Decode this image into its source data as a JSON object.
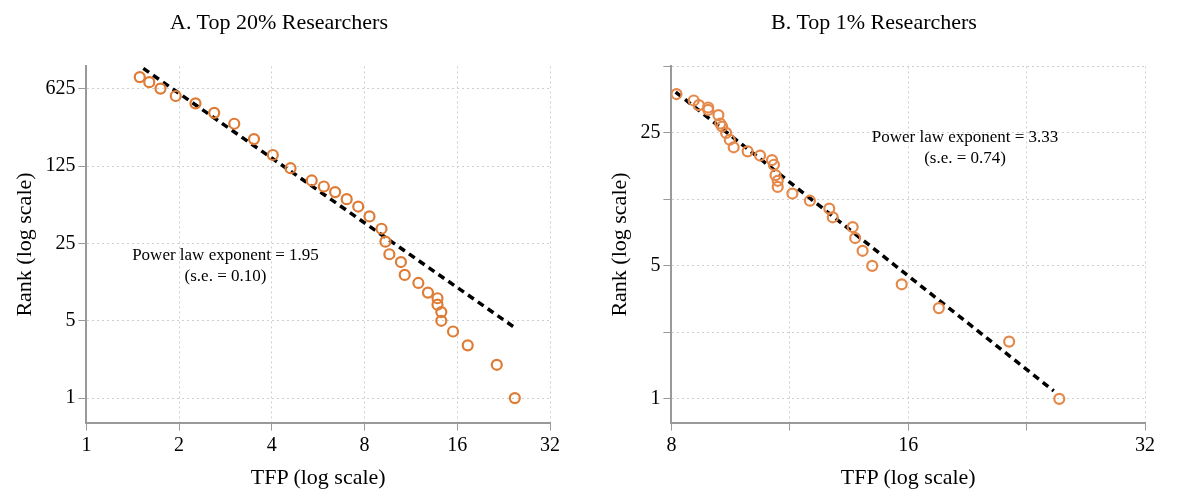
{
  "chart_data": [
    {
      "type": "scatter",
      "title": "A. Top 20% Researchers",
      "xlabel": "TFP (log scale)",
      "ylabel": "Rank (log scale)",
      "log": "xy",
      "xlim": [
        1,
        32
      ],
      "ylim": [
        0.6,
        1000
      ],
      "xticks": [
        1,
        2,
        4,
        8,
        16,
        32
      ],
      "yticks": [
        1,
        5,
        25,
        125,
        625
      ],
      "grid": true,
      "annotations": [
        "Power law exponent = 1.95",
        "(s.e. = 0.10)"
      ],
      "series": [
        {
          "marker": "circle",
          "color": "#de7b35",
          "x": [
            1.49,
            1.6,
            1.74,
            1.95,
            2.26,
            2.6,
            3.02,
            3.5,
            4.03,
            4.6,
            5.39,
            5.9,
            6.42,
            7.0,
            7.63,
            8.3,
            9.08,
            9.35,
            9.63,
            10.5,
            10.8,
            11.96,
            12.85,
            13.8,
            13.8,
            14.2,
            14.2,
            15.5,
            17.3,
            21.5,
            24.6
          ],
          "values": [
            800,
            720,
            630,
            540,
            463,
            380,
            303,
            220,
            158,
            120,
            93,
            82,
            73,
            63,
            54,
            44,
            34,
            26,
            20,
            17,
            13,
            11,
            9,
            8,
            7,
            6,
            5,
            4,
            3,
            2,
            1
          ]
        },
        {
          "type": "line",
          "marker": "none",
          "line_style": "dashed",
          "color": "#000000",
          "x": [
            1.53,
            24.6
          ],
          "values": [
            959,
            4.33
          ]
        }
      ]
    },
    {
      "type": "scatter",
      "title": "B. Top 1% Researchers",
      "xlabel": "TFP (log scale)",
      "ylabel": "Rank (log scale)",
      "log": "xy",
      "xlim": [
        8,
        32
      ],
      "ylim": [
        0.75,
        55.9
      ],
      "xticks": [
        8,
        {
          "value": 11.31,
          "label": null
        },
        16,
        {
          "value": 22.63,
          "label": null
        },
        32
      ],
      "yticks": [
        1,
        {
          "value": 2.236,
          "label": null
        },
        5,
        {
          "value": 11.18,
          "label": null
        },
        25,
        {
          "value": 55.9,
          "label": null
        }
      ],
      "grid": true,
      "annotations": [
        "Power law exponent = 3.33",
        "(s.e. = 0.74)"
      ],
      "series": [
        {
          "marker": "circle",
          "color": "#e5894a",
          "x": [
            8.12,
            8.54,
            8.67,
            8.91,
            8.91,
            9.18,
            9.23,
            9.28,
            9.39,
            9.49,
            9.6,
            10.0,
            10.37,
            10.74,
            10.8,
            10.85,
            10.92,
            10.92,
            11.4,
            12.0,
            12.7,
            12.83,
            13.6,
            13.7,
            14.0,
            14.4,
            15.7,
            17.5,
            21.5,
            24.9
          ],
          "values": [
            40,
            37,
            35,
            34,
            33,
            31,
            28,
            27,
            25,
            23,
            21,
            20,
            19,
            18,
            17,
            15,
            14,
            13,
            12,
            11,
            10,
            9,
            8,
            7,
            6,
            5,
            4,
            3,
            2,
            1
          ]
        },
        {
          "type": "line",
          "marker": "none",
          "line_style": "dashed",
          "color": "#000000",
          "x": [
            8.1,
            24.5
          ],
          "values": [
            41,
            1.1
          ]
        }
      ]
    }
  ]
}
